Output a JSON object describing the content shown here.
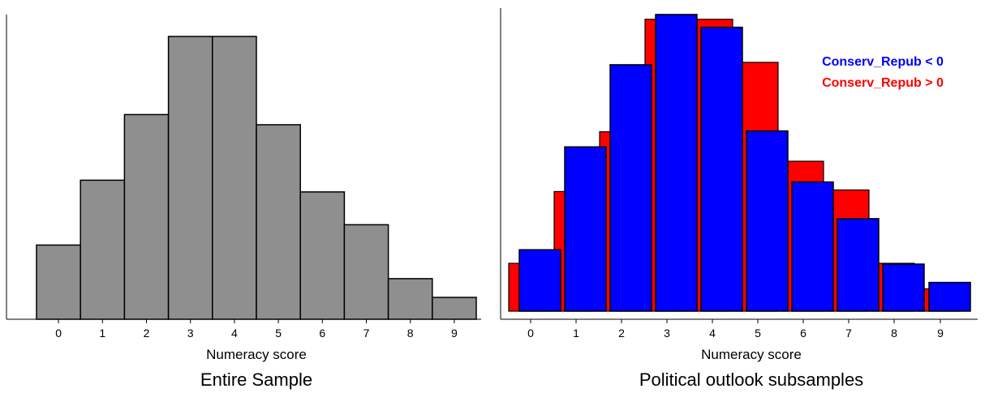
{
  "charts": [
    {
      "chart_data": {
        "type": "bar",
        "title": "Entire Sample",
        "xlabel": "Numeracy score",
        "ylabel": "",
        "categories": [
          "0",
          "1",
          "2",
          "3",
          "4",
          "5",
          "6",
          "7",
          "8",
          "9"
        ],
        "values": [
          95,
          178,
          262,
          362,
          362,
          249,
          163,
          121,
          52,
          28
        ],
        "ylim": [
          0,
          390
        ],
        "grid": false,
        "colors": {
          "bar": "#8f8f8f"
        }
      }
    },
    {
      "chart_data": {
        "type": "bar",
        "title": "Political outlook subsamples",
        "xlabel": "Numeracy score",
        "ylabel": "",
        "categories": [
          "0",
          "1",
          "2",
          "3",
          "4",
          "5",
          "6",
          "7",
          "8",
          "9"
        ],
        "series": [
          {
            "name": "Conserv_Repub > 0",
            "color": "#ff0000",
            "values": [
              60,
              150,
              225,
              366,
              366,
              312,
              188,
              152,
              60,
              28
            ]
          },
          {
            "name": "Conserv_Repub < 0",
            "color": "#0000ff",
            "values": [
              77,
              206,
              309,
              372,
              356,
              226,
              162,
              116,
              59,
              36
            ]
          }
        ],
        "ylim": [
          0,
          378
        ],
        "legend_position": "top-right",
        "grid": false
      }
    }
  ]
}
